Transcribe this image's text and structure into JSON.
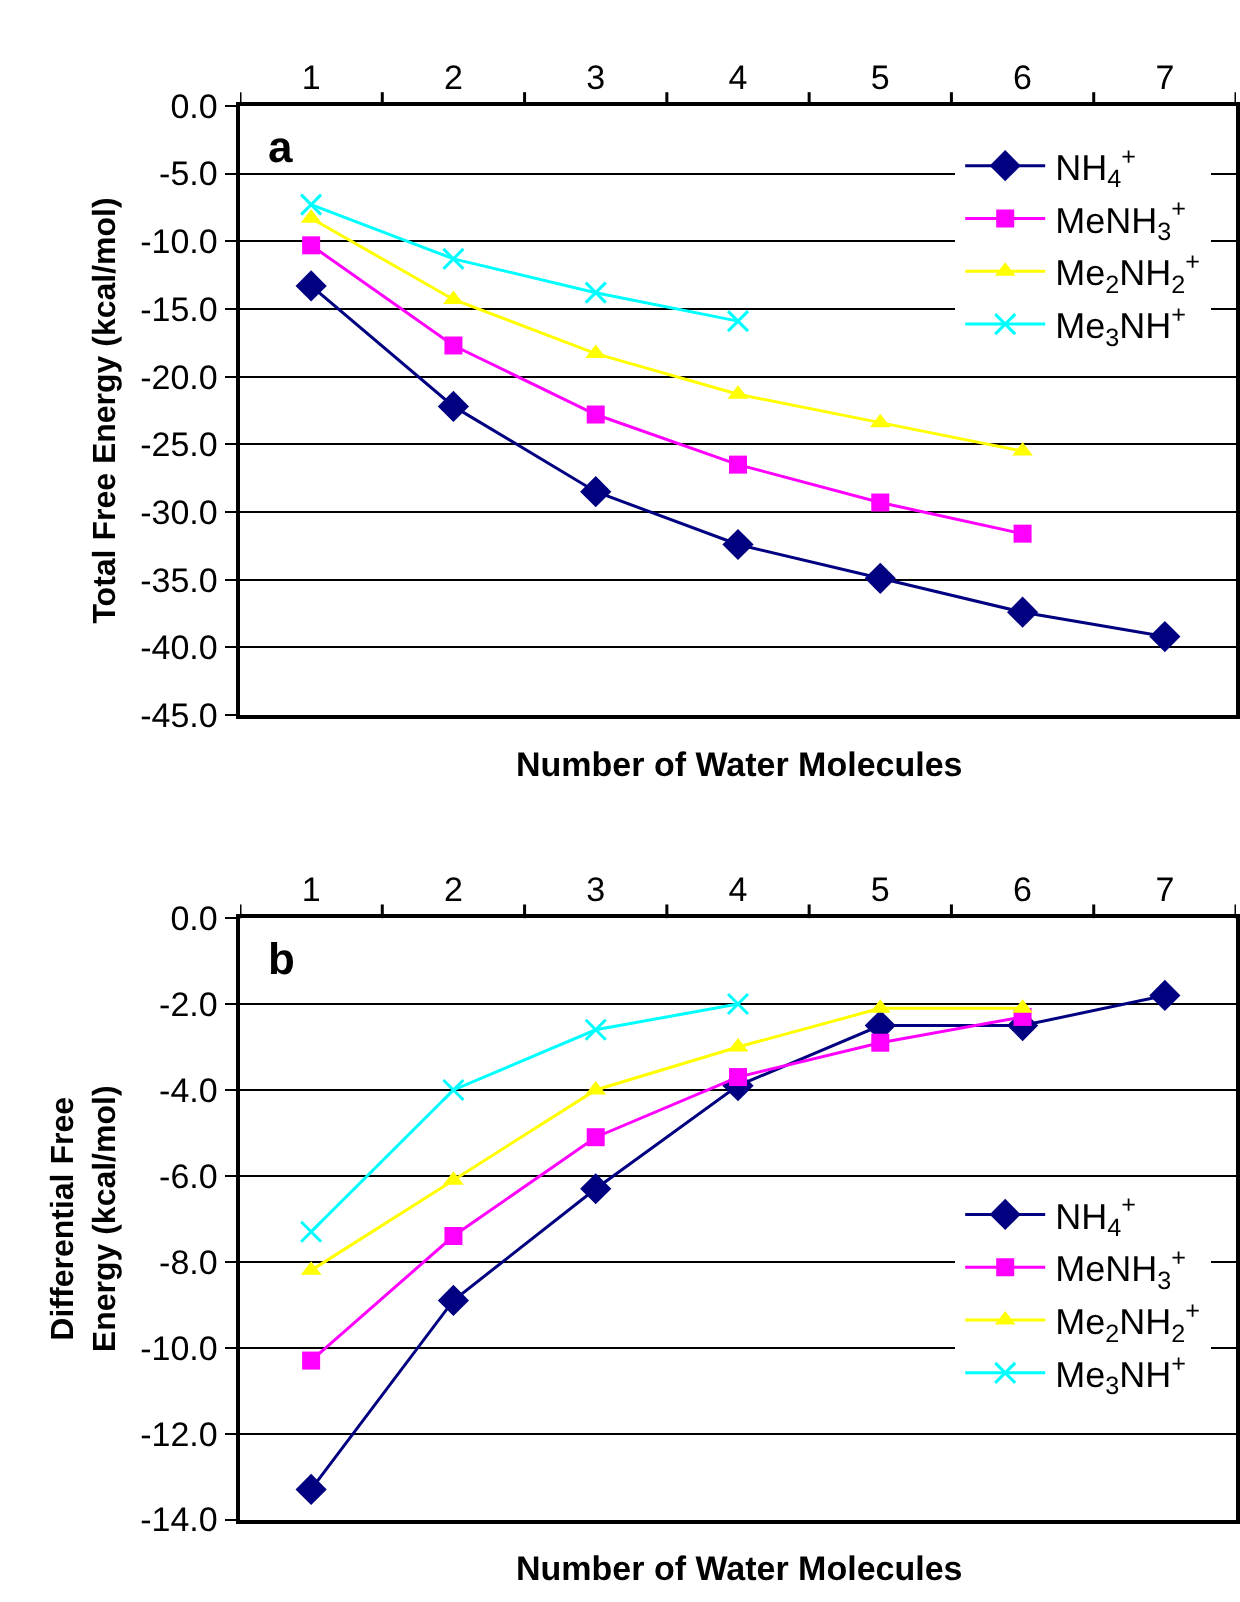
{
  "chart_data": [
    {
      "type": "line",
      "ylabel": "Total Free Energy (kcal/mol)",
      "xlabel": "Number of Water Molecules",
      "annotations": [
        "a"
      ],
      "categories": [
        "1",
        "2",
        "3",
        "4",
        "5",
        "6",
        "7"
      ],
      "ylim": [
        -45,
        0
      ],
      "yticks": [
        {
          "value": 0,
          "label": "0.0"
        },
        {
          "value": -5,
          "label": "-5.0"
        },
        {
          "value": -10,
          "label": "-10.0"
        },
        {
          "value": -15,
          "label": "-15.0"
        },
        {
          "value": -20,
          "label": "-20.0"
        },
        {
          "value": -25,
          "label": "-25.0"
        },
        {
          "value": -30,
          "label": "-30.0"
        },
        {
          "value": -35,
          "label": "-35.0"
        },
        {
          "value": -40,
          "label": "-40.0"
        },
        {
          "value": -45,
          "label": "-45.0"
        }
      ],
      "grid": "y",
      "legend": "top right",
      "line_style": "solid",
      "series": [
        {
          "name": "NH$_{4}$$^{+}$",
          "color": "#000080",
          "marker": "diamond",
          "values": [
            -13.3,
            -22.2,
            -28.5,
            -32.4,
            -34.9,
            -37.4,
            -39.2
          ]
        },
        {
          "name": "MeNH$_{3}$$^{+}$",
          "color": "#ff00ff",
          "marker": "square",
          "values": [
            -10.3,
            -17.7,
            -22.8,
            -26.5,
            -29.3,
            -31.6,
            null
          ]
        },
        {
          "name": "Me$_{2}$NH$_{2}$$^{+}$",
          "color": "#ffff00",
          "marker": "triangle",
          "values": [
            -8.3,
            -14.3,
            -18.3,
            -21.3,
            -23.4,
            -25.5,
            null
          ]
        },
        {
          "name": "Me$_{3}$NH$^{+}$",
          "color": "#00ffff",
          "marker": "cross",
          "values": [
            -7.3,
            -11.3,
            -13.8,
            -15.9,
            null,
            null,
            null
          ]
        }
      ]
    },
    {
      "type": "line",
      "ylabel": "Differential Free Energy (kcal/mol)",
      "xlabel": "Number of Water Molecules",
      "annotations": [
        "b"
      ],
      "categories": [
        "1",
        "2",
        "3",
        "4",
        "5",
        "6",
        "7"
      ],
      "ylim": [
        -14,
        0
      ],
      "yticks": [
        {
          "value": 0,
          "label": "0.0"
        },
        {
          "value": -2,
          "label": "-2.0"
        },
        {
          "value": -4,
          "label": "-4.0"
        },
        {
          "value": -6,
          "label": "-6.0"
        },
        {
          "value": -8,
          "label": "-8.0"
        },
        {
          "value": -10,
          "label": "-10.0"
        },
        {
          "value": -12,
          "label": "-12.0"
        },
        {
          "value": -14,
          "label": "-14.0"
        }
      ],
      "grid": "y",
      "legend": "bottom right",
      "line_style": "solid",
      "series": [
        {
          "name": "NH$_{4}$$^{+}$",
          "color": "#000080",
          "marker": "diamond",
          "values": [
            -13.3,
            -8.9,
            -6.3,
            -3.9,
            -2.5,
            -2.5,
            -1.8
          ]
        },
        {
          "name": "MeNH$_{3}$$^{+}$",
          "color": "#ff00ff",
          "marker": "square",
          "values": [
            -10.3,
            -7.4,
            -5.1,
            -3.7,
            -2.9,
            -2.3,
            null
          ]
        },
        {
          "name": "Me$_{2}$NH$_{2}$$^{+}$",
          "color": "#ffff00",
          "marker": "triangle",
          "values": [
            -8.2,
            -6.1,
            -4.0,
            -3.0,
            -2.1,
            -2.1,
            null
          ]
        },
        {
          "name": "Me$_{3}$NH$^{+}$",
          "color": "#00ffff",
          "marker": "cross",
          "values": [
            -7.3,
            -4.0,
            -2.6,
            -2.0,
            null,
            null,
            null
          ]
        }
      ]
    }
  ]
}
